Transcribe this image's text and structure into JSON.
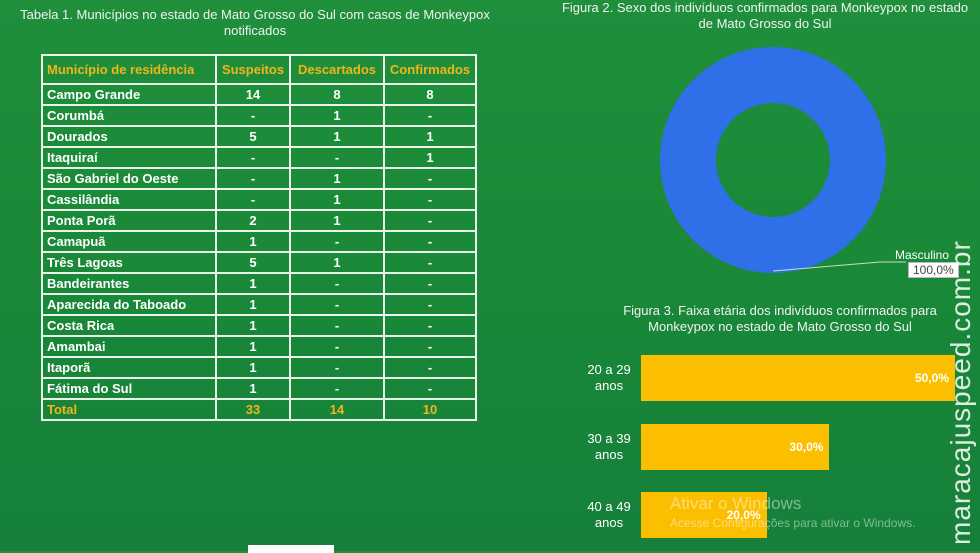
{
  "chart_data": [
    {
      "type": "table",
      "title": "Tabela 1. Municípios no estado de Mato Grosso do Sul com casos de Monkeypox notificados",
      "columns": [
        "Município de residência",
        "Suspeitos",
        "Descartados",
        "Confirmados"
      ],
      "rows": [
        [
          "Campo Grande",
          "14",
          "8",
          "8"
        ],
        [
          "Corumbá",
          "-",
          "1",
          "-"
        ],
        [
          "Dourados",
          "5",
          "1",
          "1"
        ],
        [
          "Itaquiraí",
          "-",
          "-",
          "1"
        ],
        [
          "São Gabriel do Oeste",
          "-",
          "1",
          "-"
        ],
        [
          "Cassilândia",
          "-",
          "1",
          "-"
        ],
        [
          "Ponta Porã",
          "2",
          "1",
          "-"
        ],
        [
          "Camapuã",
          "1",
          "-",
          "-"
        ],
        [
          "Três Lagoas",
          "5",
          "1",
          "-"
        ],
        [
          "Bandeirantes",
          "1",
          "-",
          "-"
        ],
        [
          "Aparecida do Taboado",
          "1",
          "-",
          "-"
        ],
        [
          "Costa Rica",
          "1",
          "-",
          "-"
        ],
        [
          "Amambai",
          "1",
          "-",
          "-"
        ],
        [
          "Itaporã",
          "1",
          "-",
          "-"
        ],
        [
          "Fátima do Sul",
          "1",
          "-",
          "-"
        ]
      ],
      "total": [
        "Total",
        "33",
        "14",
        "10"
      ]
    },
    {
      "type": "pie",
      "title": "Figura 2. Sexo dos indivíduos confirmados para Monkeypox no estado de Mato Grosso do Sul",
      "categories": [
        "Masculino"
      ],
      "values": [
        100.0
      ],
      "labels": [
        "100,0%"
      ],
      "colors": [
        "#2f6fe8"
      ]
    },
    {
      "type": "bar",
      "orientation": "horizontal",
      "title": "Figura 3. Faixa etária dos indivíduos confirmados para Monkeypox no estado de Mato Grosso do Sul",
      "categories": [
        "20 a 29 anos",
        "30 a 39 anos",
        "40 a 49 anos"
      ],
      "values": [
        50.0,
        30.0,
        20.0
      ],
      "labels": [
        "50,0%",
        "30,0%",
        "20,0%"
      ],
      "xlim": [
        0,
        50
      ],
      "color": "#fbbf00"
    }
  ],
  "watermarks": {
    "windows_line1": "Ativar o Windows",
    "windows_line2": "Acesse Configurações para ativar o Windows.",
    "site": "maracajuspeed.com.br"
  }
}
